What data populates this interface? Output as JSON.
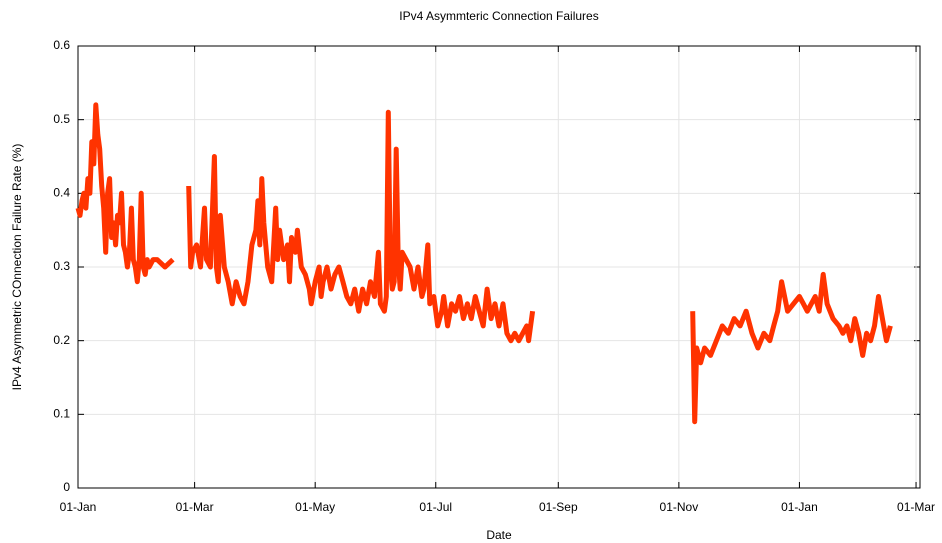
{
  "chart_data": {
    "type": "line",
    "title": "IPv4 Asymmteric Connection Failures",
    "xlabel": "Date",
    "ylabel": "IPv4 Asymmetric COnnection Failure Rate (%)",
    "x": [
      0,
      1,
      2,
      3,
      4,
      5,
      6,
      7,
      8,
      9,
      10,
      11,
      12,
      13,
      14,
      15,
      16,
      17,
      18,
      19,
      20,
      21,
      22,
      23,
      24,
      25,
      26,
      27,
      28,
      29,
      30,
      31,
      32,
      33,
      34,
      35,
      36,
      38,
      40,
      44,
      48,
      50,
      56,
      57,
      58,
      60,
      62,
      64,
      65,
      67,
      69,
      70,
      71,
      72,
      74,
      76,
      78,
      80,
      82,
      84,
      86,
      88,
      90,
      91,
      92,
      93,
      94,
      96,
      98,
      100,
      101,
      102,
      104,
      106,
      107,
      108,
      110,
      111,
      113,
      115,
      117,
      118,
      120,
      122,
      123,
      124,
      126,
      128,
      130,
      132,
      134,
      136,
      138,
      140,
      142,
      144,
      146,
      148,
      150,
      152,
      153,
      155,
      156,
      157,
      158,
      159,
      160,
      161,
      162,
      163,
      164,
      166,
      168,
      170,
      172,
      174,
      175,
      177,
      178,
      180,
      182,
      184,
      185,
      187,
      189,
      191,
      193,
      195,
      197,
      199,
      201,
      203,
      205,
      207,
      209,
      211,
      213,
      215,
      217,
      219,
      221,
      223,
      225,
      227,
      228,
      229,
      230,
      242,
      311,
      312,
      313,
      315,
      317,
      320,
      323,
      326,
      329,
      332,
      335,
      338,
      341,
      344,
      347,
      350,
      352,
      354,
      356,
      359,
      362,
      365,
      367,
      369,
      371,
      373,
      375,
      377,
      379,
      382,
      385,
      387,
      389,
      391,
      393,
      395,
      397,
      399,
      401,
      403,
      405,
      407,
      409,
      411
    ],
    "series": [
      {
        "name": "Failure Rate",
        "color": "#ff3300",
        "values": [
          0.38,
          0.37,
          0.39,
          0.4,
          0.38,
          0.42,
          0.4,
          0.47,
          0.44,
          0.52,
          0.48,
          0.46,
          0.41,
          0.38,
          0.32,
          0.4,
          0.42,
          0.34,
          0.36,
          0.33,
          0.37,
          0.36,
          0.4,
          0.33,
          0.32,
          0.3,
          0.32,
          0.38,
          0.31,
          0.3,
          0.28,
          0.31,
          0.4,
          0.3,
          0.29,
          0.31,
          0.3,
          0.31,
          0.31,
          0.3,
          0.31,
          null,
          0.41,
          0.3,
          0.32,
          0.33,
          0.3,
          0.38,
          0.31,
          0.3,
          0.45,
          0.3,
          0.28,
          0.37,
          0.3,
          0.28,
          0.25,
          0.28,
          0.26,
          0.25,
          0.28,
          0.33,
          0.35,
          0.39,
          0.33,
          0.42,
          0.36,
          0.3,
          0.28,
          0.38,
          0.31,
          0.35,
          0.31,
          0.33,
          0.28,
          0.34,
          0.32,
          0.35,
          0.3,
          0.29,
          0.27,
          0.25,
          0.28,
          0.3,
          0.26,
          0.28,
          0.3,
          0.27,
          0.29,
          0.3,
          0.28,
          0.26,
          0.25,
          0.27,
          0.24,
          0.27,
          0.25,
          0.28,
          0.26,
          0.32,
          0.25,
          0.24,
          0.26,
          0.51,
          0.3,
          0.27,
          0.28,
          0.46,
          0.31,
          0.27,
          0.32,
          0.31,
          0.3,
          0.27,
          0.3,
          0.26,
          0.27,
          0.33,
          0.25,
          0.26,
          0.22,
          0.24,
          0.26,
          0.22,
          0.25,
          0.24,
          0.26,
          0.23,
          0.25,
          0.23,
          0.26,
          0.24,
          0.22,
          0.27,
          0.23,
          0.25,
          0.22,
          0.25,
          0.21,
          0.2,
          0.21,
          0.2,
          0.21,
          0.22,
          0.2,
          0.22,
          0.24,
          null,
          0.24,
          0.09,
          0.19,
          0.17,
          0.19,
          0.18,
          0.2,
          0.22,
          0.21,
          0.23,
          0.22,
          0.24,
          0.21,
          0.19,
          0.21,
          0.2,
          0.22,
          0.24,
          0.28,
          0.24,
          0.25,
          0.26,
          0.25,
          0.24,
          0.25,
          0.26,
          0.24,
          0.29,
          0.25,
          0.23,
          0.22,
          0.21,
          0.22,
          0.2,
          0.23,
          0.21,
          0.18,
          0.21,
          0.2,
          0.22,
          0.26,
          0.23,
          0.2,
          0.22
        ]
      }
    ],
    "xlim": [
      0,
      426
    ],
    "xticks": [
      {
        "value": 0,
        "label": "01-Jan"
      },
      {
        "value": 59,
        "label": "01-Mar"
      },
      {
        "value": 120,
        "label": "01-May"
      },
      {
        "value": 181,
        "label": "01-Jul"
      },
      {
        "value": 243,
        "label": "01-Sep"
      },
      {
        "value": 304,
        "label": "01-Nov"
      },
      {
        "value": 365,
        "label": "01-Jan"
      },
      {
        "value": 424,
        "label": "01-Mar"
      }
    ],
    "ylim": [
      0,
      0.6
    ],
    "yticks": [
      0,
      0.1,
      0.2,
      0.3,
      0.4,
      0.5,
      0.6
    ],
    "grid": true
  }
}
